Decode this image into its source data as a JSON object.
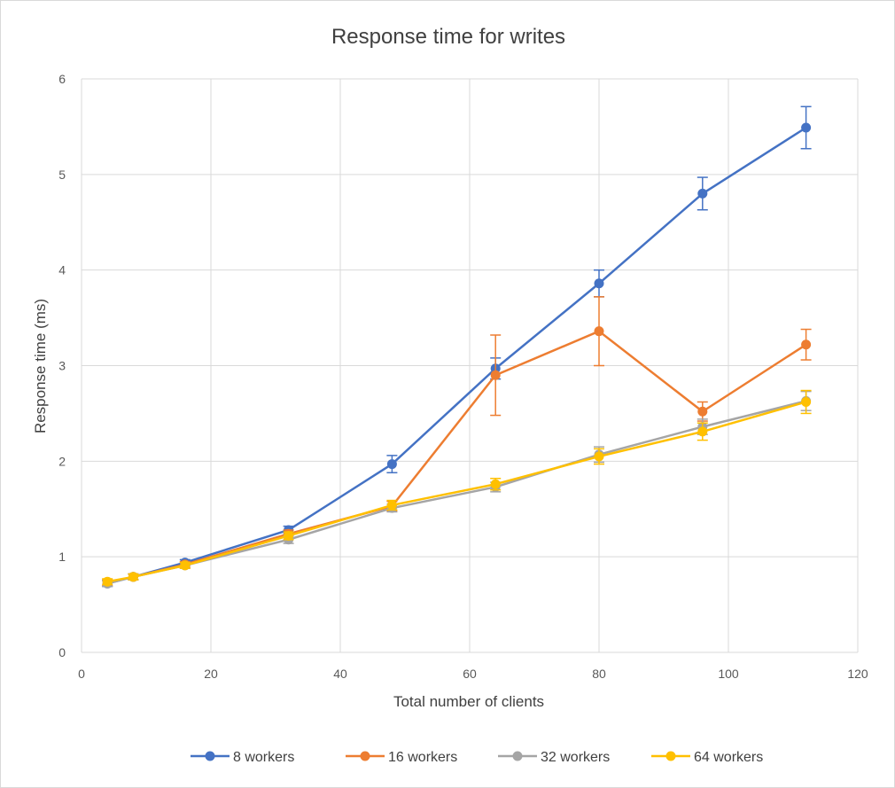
{
  "chart_data": {
    "type": "line",
    "title": "Response time for writes",
    "xlabel": "Total number of clients",
    "ylabel": "Response time (ms)",
    "xlim": [
      0,
      120
    ],
    "ylim": [
      0,
      6
    ],
    "xticks": [
      0,
      20,
      40,
      60,
      80,
      100,
      120
    ],
    "yticks": [
      0,
      1,
      2,
      3,
      4,
      5,
      6
    ],
    "grid": true,
    "legend_position": "bottom",
    "x": [
      4,
      8,
      16,
      32,
      48,
      64,
      80,
      96,
      112
    ],
    "series": [
      {
        "name": "8 workers",
        "color": "#4472C4",
        "values": [
          0.72,
          0.79,
          0.94,
          1.28,
          1.97,
          2.97,
          3.86,
          4.8,
          5.49
        ],
        "errors": [
          0.03,
          0.03,
          0.03,
          0.04,
          0.09,
          0.11,
          0.14,
          0.17,
          0.22
        ]
      },
      {
        "name": "16 workers",
        "color": "#ED7D31",
        "values": [
          0.73,
          0.79,
          0.92,
          1.24,
          1.53,
          2.9,
          3.36,
          2.52,
          3.22
        ],
        "errors": [
          0.03,
          0.03,
          0.03,
          0.04,
          0.05,
          0.42,
          0.36,
          0.1,
          0.16
        ]
      },
      {
        "name": "32 workers",
        "color": "#A5A5A5",
        "values": [
          0.72,
          0.79,
          0.91,
          1.18,
          1.51,
          1.73,
          2.07,
          2.36,
          2.63
        ],
        "errors": [
          0.03,
          0.03,
          0.03,
          0.04,
          0.04,
          0.05,
          0.08,
          0.08,
          0.1
        ]
      },
      {
        "name": "64 workers",
        "color": "#FFC000",
        "values": [
          0.74,
          0.79,
          0.91,
          1.22,
          1.54,
          1.76,
          2.05,
          2.31,
          2.62
        ],
        "errors": [
          0.03,
          0.03,
          0.03,
          0.04,
          0.05,
          0.06,
          0.08,
          0.09,
          0.12
        ]
      }
    ]
  }
}
